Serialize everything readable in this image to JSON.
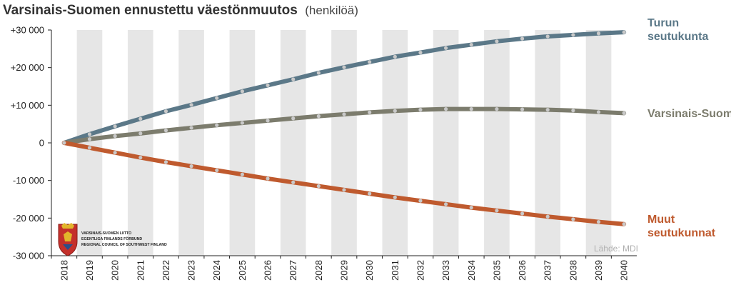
{
  "chart_data": {
    "type": "line",
    "title": "Varsinais-Suomen ennustettu väestönmuutos",
    "subtitle": "(henkilöä)",
    "x": [
      2018,
      2019,
      2020,
      2021,
      2022,
      2023,
      2024,
      2025,
      2026,
      2027,
      2028,
      2029,
      2030,
      2031,
      2032,
      2033,
      2034,
      2035,
      2036,
      2037,
      2038,
      2039,
      2040
    ],
    "x_tick_labels": [
      "2018",
      "2019",
      "2020",
      "2021",
      "2022",
      "2023",
      "2024",
      "2025",
      "2026",
      "2027",
      "2028",
      "2029",
      "2030",
      "2031",
      "2032",
      "2033",
      "2034",
      "2035",
      "2036",
      "2037",
      "2038",
      "2039",
      "2040"
    ],
    "ylim": [
      -30000,
      30000
    ],
    "y_ticks": [
      30000,
      20000,
      10000,
      0,
      -10000,
      -20000,
      -30000
    ],
    "y_tick_labels": [
      "+30 000",
      "+20 000",
      "+10 000",
      "0",
      "-10 000",
      "-20 000",
      "-30 000"
    ],
    "series": [
      {
        "name": "Turun seutukunta",
        "label_lines": [
          "Turun",
          "seutukunta"
        ],
        "color": "#5b7888",
        "values": [
          0,
          2300,
          4400,
          6400,
          8400,
          10100,
          11900,
          13700,
          15300,
          16900,
          18600,
          20100,
          21500,
          22900,
          24000,
          25200,
          26100,
          27000,
          27700,
          28300,
          28700,
          29100,
          29400
        ]
      },
      {
        "name": "Varsinais-Suomi",
        "label_lines": [
          "Varsinais-Suomi"
        ],
        "color": "#7c7c6d",
        "values": [
          0,
          1000,
          1800,
          2500,
          3300,
          4000,
          4700,
          5300,
          5900,
          6500,
          7100,
          7600,
          8100,
          8500,
          8800,
          9000,
          9000,
          9000,
          8900,
          8800,
          8600,
          8200,
          7900
        ]
      },
      {
        "name": "Muut seutukunnat",
        "label_lines": [
          "Muut",
          "seutukunnat"
        ],
        "color": "#bf5a2e",
        "values": [
          0,
          -1300,
          -2600,
          -3900,
          -5100,
          -6200,
          -7300,
          -8400,
          -9500,
          -10500,
          -11500,
          -12500,
          -13500,
          -14500,
          -15400,
          -16300,
          -17200,
          -18000,
          -18800,
          -19600,
          -20300,
          -21000,
          -21600
        ]
      }
    ],
    "grid": true,
    "legend": "labels at line ends, right"
  },
  "source_text": "Lähde: MDI",
  "logo": {
    "lines": [
      "VARSINAIS-SUOMEN LIITTO",
      "EGENTLIGA FINLANDS FÖRBUND",
      "REGIONAL COUNCIL OF SOUTHWEST FINLAND"
    ]
  },
  "colors": {
    "band": "#e6e6e6",
    "dot": "#c9c9c9",
    "axis": "#222222"
  }
}
